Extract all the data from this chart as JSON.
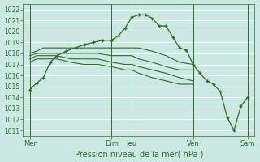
{
  "bg_color": "#cce8e2",
  "grid_color": "#b8ddd6",
  "line_color": "#2d6b2d",
  "xlabel": "Pression niveau de la mer( hPa )",
  "xlabel_color": "#2d6b2d",
  "ylim": [
    1010.5,
    1022.5
  ],
  "yticks": [
    1011,
    1012,
    1013,
    1014,
    1015,
    1016,
    1017,
    1018,
    1019,
    1020,
    1021,
    1022
  ],
  "xtick_positions": [
    0,
    36,
    45,
    72,
    96
  ],
  "xtick_labels": [
    "Mer",
    "Dim",
    "Jeu",
    "Ven",
    "Sam"
  ],
  "vline_positions": [
    0,
    36,
    45,
    72,
    96
  ],
  "xlim": [
    -3,
    99
  ],
  "main_line_x": [
    0,
    3,
    6,
    9,
    12,
    16,
    20,
    24,
    28,
    32,
    36,
    39,
    42,
    45,
    48,
    51,
    54,
    57,
    60,
    63,
    66,
    69,
    72,
    75,
    78,
    81,
    84,
    87,
    90,
    93,
    96
  ],
  "main_line_y": [
    1014.7,
    1015.3,
    1015.8,
    1017.2,
    1017.8,
    1018.2,
    1018.5,
    1018.8,
    1019.0,
    1019.2,
    1019.2,
    1019.6,
    1020.3,
    1021.3,
    1021.5,
    1021.5,
    1021.2,
    1020.5,
    1020.5,
    1019.5,
    1018.5,
    1018.3,
    1017.0,
    1016.2,
    1015.5,
    1015.2,
    1014.5,
    1012.2,
    1011.0,
    1013.2,
    1014.0
  ],
  "flat_lines": [
    {
      "x": [
        0,
        3,
        6,
        12,
        18,
        24,
        30,
        36,
        42,
        45,
        48,
        54,
        60,
        66,
        72
      ],
      "y": [
        1018.0,
        1018.2,
        1018.5,
        1018.5,
        1018.5,
        1018.5,
        1018.5,
        1018.5,
        1018.5,
        1018.5,
        1018.5,
        1018.2,
        1017.8,
        1017.2,
        1017.0
      ]
    },
    {
      "x": [
        0,
        3,
        6,
        12,
        18,
        24,
        30,
        36,
        42,
        45,
        48,
        54,
        60,
        66,
        72
      ],
      "y": [
        1017.8,
        1018.0,
        1018.0,
        1018.0,
        1018.0,
        1018.0,
        1018.0,
        1017.8,
        1017.8,
        1017.8,
        1017.5,
        1017.2,
        1016.8,
        1016.5,
        1016.5
      ]
    },
    {
      "x": [
        0,
        3,
        6,
        12,
        18,
        24,
        30,
        36,
        42,
        45,
        48,
        54,
        60,
        66,
        72
      ],
      "y": [
        1017.5,
        1017.8,
        1017.8,
        1017.8,
        1017.5,
        1017.5,
        1017.5,
        1017.2,
        1017.0,
        1017.0,
        1016.8,
        1016.5,
        1016.2,
        1015.8,
        1015.5
      ]
    },
    {
      "x": [
        0,
        3,
        6,
        12,
        18,
        24,
        30,
        36,
        42,
        45,
        48,
        54,
        60,
        66,
        72
      ],
      "y": [
        1017.2,
        1017.5,
        1017.5,
        1017.5,
        1017.2,
        1017.0,
        1017.0,
        1016.8,
        1016.5,
        1016.5,
        1016.2,
        1015.8,
        1015.5,
        1015.2,
        1015.2
      ]
    }
  ]
}
